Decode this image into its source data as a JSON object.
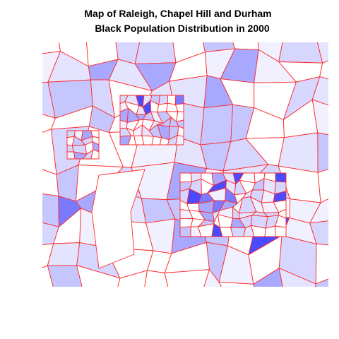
{
  "title": [
    "Map of Raleigh, Chapel Hill and Durham",
    "Black Population Distribution in 2000"
  ]
}
